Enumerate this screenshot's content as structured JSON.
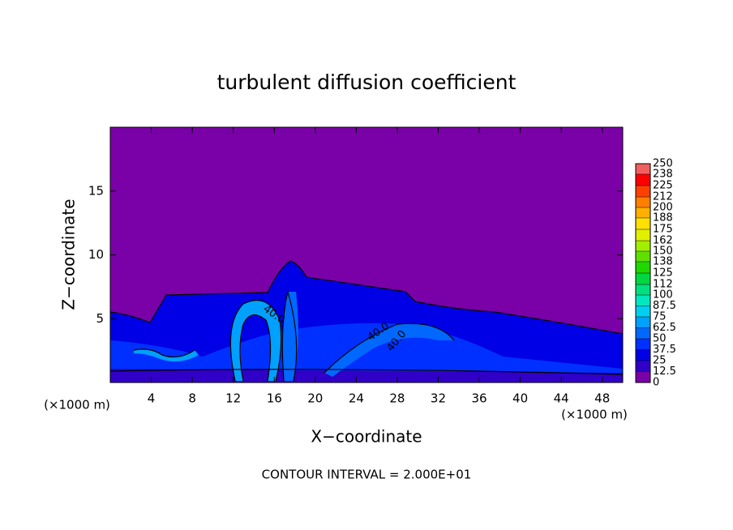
{
  "chart_data": {
    "type": "contour",
    "title": "turbulent diffusion coefficient",
    "x_label": "X−coordinate",
    "y_label": "Z−coordinate",
    "x_unit": "(×1000 m)",
    "y_unit": "(×1000 m)",
    "xlim": [
      0,
      50
    ],
    "ylim": [
      0,
      20
    ],
    "xticks": [
      4,
      8,
      12,
      16,
      20,
      24,
      28,
      32,
      36,
      40,
      44,
      48
    ],
    "yticks": [
      5,
      10,
      15
    ],
    "contour_labels": [
      "40.0",
      "40.0",
      "40.0"
    ],
    "note": "CONTOUR INTERVAL = 2.000E+01",
    "colorbar": {
      "ticks": [
        0,
        12.5,
        25,
        37.5,
        50,
        62.5,
        75,
        87.5,
        100,
        112,
        125,
        138,
        150,
        162,
        175,
        188,
        200,
        212,
        225,
        238,
        250
      ],
      "colors": [
        "#7a00a8",
        "#3000c8",
        "#0000e6",
        "#0030ff",
        "#0068ff",
        "#00a0ff",
        "#00d0f0",
        "#00e8c0",
        "#00e080",
        "#00d840",
        "#20d800",
        "#60e000",
        "#a0f000",
        "#e0f000",
        "#ffe000",
        "#ffb000",
        "#ff8000",
        "#ff4000",
        "#ff0000",
        "#f06060"
      ]
    }
  }
}
